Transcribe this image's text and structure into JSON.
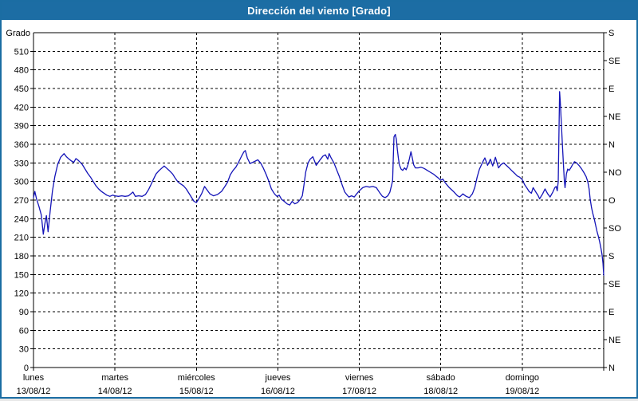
{
  "window": {
    "title": "Dirección del viento [Grado]"
  },
  "colors": {
    "titlebar_bg": "#1C6DA4",
    "titlebar_text": "#FFFFFF",
    "frame_border": "#1B6DA3",
    "background": "#FFFFFF",
    "grid": "#000000",
    "line": "#1414B8"
  },
  "chart_data": {
    "type": "line",
    "title": "Dirección del viento [Grado]",
    "ylabel_left": "Grado",
    "grid": "dashed",
    "legend_position": "none",
    "ylim": [
      0,
      540
    ],
    "y_left_tick_step": 30,
    "y_left_tick_labels": [
      "0",
      "30",
      "60",
      "90",
      "120",
      "150",
      "180",
      "210",
      "240",
      "270",
      "300",
      "330",
      "360",
      "390",
      "420",
      "450",
      "480",
      "510"
    ],
    "y_right_tick_step": 45,
    "y_right_labels_bottom_to_top": [
      "N",
      "NE",
      "E",
      "SE",
      "S",
      "SO",
      "O",
      "NO",
      "N",
      "NE",
      "E",
      "SE",
      "S"
    ],
    "x_range_hours": [
      0,
      168
    ],
    "x_days": [
      {
        "name": "lunes",
        "date": "13/08/12"
      },
      {
        "name": "martes",
        "date": "14/08/12"
      },
      {
        "name": "miércoles",
        "date": "15/08/12"
      },
      {
        "name": "jueves",
        "date": "16/08/12"
      },
      {
        "name": "viernes",
        "date": "17/08/12"
      },
      {
        "name": "sábado",
        "date": "18/08/12"
      },
      {
        "name": "domingo",
        "date": "19/08/12"
      }
    ],
    "series": [
      {
        "name": "Dirección del viento",
        "unit": "Grado",
        "color": "#1414B8",
        "points": [
          [
            0,
            274
          ],
          [
            0.4,
            284
          ],
          [
            0.9,
            272
          ],
          [
            1.6,
            260
          ],
          [
            2.3,
            246
          ],
          [
            2.9,
            215
          ],
          [
            3.3,
            230
          ],
          [
            3.8,
            245
          ],
          [
            4.3,
            219
          ],
          [
            4.9,
            252
          ],
          [
            5.6,
            285
          ],
          [
            6.3,
            308
          ],
          [
            7.1,
            327
          ],
          [
            8,
            339
          ],
          [
            9,
            345
          ],
          [
            9.7,
            340
          ],
          [
            10.5,
            336
          ],
          [
            11.2,
            333
          ],
          [
            11.9,
            331
          ],
          [
            12.5,
            337
          ],
          [
            13.2,
            334
          ],
          [
            14.3,
            328
          ],
          [
            15.2,
            320
          ],
          [
            16,
            313
          ],
          [
            16.8,
            307
          ],
          [
            17.6,
            300
          ],
          [
            18.4,
            293
          ],
          [
            19.2,
            288
          ],
          [
            20,
            284
          ],
          [
            20.8,
            281
          ],
          [
            21.6,
            278
          ],
          [
            22.5,
            276
          ],
          [
            23.3,
            278
          ],
          [
            24,
            277
          ],
          [
            25,
            276
          ],
          [
            26,
            277
          ],
          [
            27,
            276
          ],
          [
            28,
            277
          ],
          [
            29.3,
            283
          ],
          [
            30,
            276
          ],
          [
            31,
            277
          ],
          [
            32,
            276
          ],
          [
            33,
            279
          ],
          [
            33.9,
            287
          ],
          [
            34.6,
            295
          ],
          [
            35.3,
            303
          ],
          [
            36.1,
            312
          ],
          [
            36.9,
            317
          ],
          [
            37.7,
            321
          ],
          [
            38.5,
            325
          ],
          [
            39.3,
            321
          ],
          [
            40.1,
            317
          ],
          [
            41,
            312
          ],
          [
            41.8,
            305
          ],
          [
            42.6,
            299
          ],
          [
            43.4,
            296
          ],
          [
            44.2,
            293
          ],
          [
            45,
            288
          ],
          [
            45.8,
            281
          ],
          [
            46.6,
            274
          ],
          [
            47.3,
            268
          ],
          [
            48,
            266
          ],
          [
            48.8,
            273
          ],
          [
            49.6,
            281
          ],
          [
            50.4,
            292
          ],
          [
            51.2,
            286
          ],
          [
            52,
            280
          ],
          [
            53,
            277
          ],
          [
            54.2,
            279
          ],
          [
            55.4,
            284
          ],
          [
            56.4,
            292
          ],
          [
            57.2,
            299
          ],
          [
            58,
            311
          ],
          [
            58.8,
            318
          ],
          [
            59.6,
            323
          ],
          [
            60.4,
            331
          ],
          [
            61.2,
            340
          ],
          [
            62,
            348
          ],
          [
            62.4,
            350
          ],
          [
            63,
            338
          ],
          [
            63.8,
            329
          ],
          [
            64.6,
            331
          ],
          [
            65.4,
            333
          ],
          [
            66.1,
            335
          ],
          [
            66.9,
            330
          ],
          [
            67.7,
            322
          ],
          [
            68.5,
            312
          ],
          [
            69.3,
            301
          ],
          [
            70.1,
            288
          ],
          [
            71,
            280
          ],
          [
            71.7,
            276
          ],
          [
            72.4,
            278
          ],
          [
            73.1,
            271
          ],
          [
            73.9,
            268
          ],
          [
            74.7,
            264
          ],
          [
            75.5,
            262
          ],
          [
            76.2,
            268
          ],
          [
            77,
            264
          ],
          [
            77.8,
            266
          ],
          [
            78.6,
            271
          ],
          [
            79.2,
            277
          ],
          [
            79.7,
            295
          ],
          [
            80.2,
            315
          ],
          [
            80.9,
            330
          ],
          [
            81.5,
            336
          ],
          [
            82.3,
            340
          ],
          [
            83.3,
            326
          ],
          [
            84.3,
            334
          ],
          [
            85.3,
            341
          ],
          [
            86,
            343
          ],
          [
            86.7,
            336
          ],
          [
            87.1,
            345
          ],
          [
            87.7,
            338
          ],
          [
            88.5,
            330
          ],
          [
            89.3,
            319
          ],
          [
            90.1,
            308
          ],
          [
            90.9,
            295
          ],
          [
            91.7,
            283
          ],
          [
            92.3,
            279
          ],
          [
            92.9,
            275
          ],
          [
            93.7,
            277
          ],
          [
            94.5,
            275
          ],
          [
            95.2,
            280
          ],
          [
            96,
            285
          ],
          [
            97,
            290
          ],
          [
            98,
            292
          ],
          [
            99,
            291
          ],
          [
            100,
            292
          ],
          [
            101,
            290
          ],
          [
            102,
            282
          ],
          [
            102.8,
            276
          ],
          [
            103.6,
            274
          ],
          [
            104.4,
            277
          ],
          [
            105,
            283
          ],
          [
            105.5,
            294
          ],
          [
            105.8,
            301
          ],
          [
            106,
            335
          ],
          [
            106.2,
            372
          ],
          [
            106.6,
            376
          ],
          [
            106.9,
            368
          ],
          [
            107.2,
            352
          ],
          [
            107.5,
            338
          ],
          [
            107.8,
            327
          ],
          [
            108.3,
            320
          ],
          [
            108.8,
            318
          ],
          [
            109.3,
            322
          ],
          [
            109.8,
            319
          ],
          [
            110.3,
            326
          ],
          [
            110.8,
            338
          ],
          [
            111.2,
            348
          ],
          [
            111.6,
            338
          ],
          [
            112,
            327
          ],
          [
            112.5,
            322
          ],
          [
            113.3,
            322
          ],
          [
            114.2,
            323
          ],
          [
            115.1,
            321
          ],
          [
            116,
            318
          ],
          [
            116.9,
            315
          ],
          [
            117.8,
            312
          ],
          [
            118.7,
            308
          ],
          [
            119.4,
            305
          ],
          [
            120,
            302
          ],
          [
            120.6,
            304
          ],
          [
            121.3,
            298
          ],
          [
            122.5,
            290
          ],
          [
            123.7,
            284
          ],
          [
            124.9,
            277
          ],
          [
            125.6,
            275
          ],
          [
            126.5,
            280
          ],
          [
            127.5,
            276
          ],
          [
            128.4,
            274
          ],
          [
            129.3,
            280
          ],
          [
            130,
            290
          ],
          [
            130.7,
            307
          ],
          [
            131.4,
            320
          ],
          [
            132.3,
            331
          ],
          [
            133,
            338
          ],
          [
            133.8,
            326
          ],
          [
            134.6,
            336
          ],
          [
            135.3,
            325
          ],
          [
            136.1,
            339
          ],
          [
            137,
            322
          ],
          [
            137.7,
            327
          ],
          [
            138.5,
            330
          ],
          [
            139.3,
            326
          ],
          [
            140.1,
            322
          ],
          [
            141,
            317
          ],
          [
            141.8,
            313
          ],
          [
            142.5,
            309
          ],
          [
            143.2,
            307
          ],
          [
            144,
            303
          ],
          [
            144.7,
            295
          ],
          [
            145.3,
            290
          ],
          [
            146,
            284
          ],
          [
            146.7,
            281
          ],
          [
            147.2,
            290
          ],
          [
            148,
            283
          ],
          [
            148.7,
            277
          ],
          [
            149.1,
            272
          ],
          [
            150,
            280
          ],
          [
            150.7,
            288
          ],
          [
            151.5,
            280
          ],
          [
            152.2,
            275
          ],
          [
            153,
            283
          ],
          [
            153.6,
            290
          ],
          [
            154,
            292
          ],
          [
            154.3,
            285
          ],
          [
            154.6,
            300
          ],
          [
            154.8,
            370
          ],
          [
            155,
            445
          ],
          [
            155.2,
            430
          ],
          [
            155.5,
            396
          ],
          [
            155.8,
            362
          ],
          [
            156.1,
            330
          ],
          [
            156.4,
            302
          ],
          [
            156.6,
            290
          ],
          [
            157,
            312
          ],
          [
            157.4,
            320
          ],
          [
            157.8,
            318
          ],
          [
            158.3,
            322
          ],
          [
            158.9,
            328
          ],
          [
            159.4,
            332
          ],
          [
            160,
            330
          ],
          [
            160.7,
            326
          ],
          [
            161.4,
            321
          ],
          [
            162.1,
            315
          ],
          [
            162.8,
            308
          ],
          [
            163.3,
            300
          ],
          [
            163.7,
            288
          ],
          [
            164,
            272
          ],
          [
            164.4,
            258
          ],
          [
            164.8,
            248
          ],
          [
            165.2,
            240
          ],
          [
            165.6,
            230
          ],
          [
            166,
            220
          ],
          [
            166.4,
            212
          ],
          [
            166.8,
            203
          ],
          [
            167.2,
            192
          ],
          [
            167.5,
            182
          ],
          [
            167.8,
            168
          ],
          [
            168,
            149
          ]
        ]
      }
    ]
  }
}
